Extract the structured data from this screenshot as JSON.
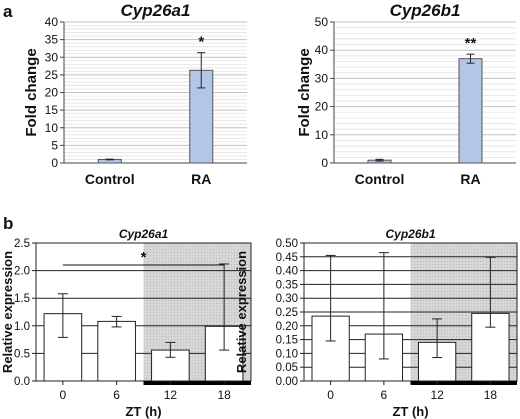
{
  "panel_labels": {
    "a": "a",
    "b": "b"
  },
  "significance": {
    "single": "*",
    "double": "**"
  },
  "colors": {
    "ra_bar": "#b4c6e7",
    "control_bar": "#b4c6e7",
    "open_bar": "#ffffff",
    "night_shade": "#d3d3d3"
  },
  "chart_data": [
    {
      "type": "bar",
      "title": "Cyp26a1",
      "ylabel": "Fold change",
      "xlabel": "",
      "categories": [
        "Control",
        "RA"
      ],
      "values": [
        1,
        26.3
      ],
      "errors": [
        0.1,
        5
      ],
      "ylim": [
        0,
        40
      ],
      "ytick_labels": [
        "0",
        "5",
        "10",
        "15",
        "20",
        "25",
        "30",
        "35",
        "40"
      ],
      "annotations": [
        {
          "category": "RA",
          "text": "*"
        }
      ],
      "grid": true
    },
    {
      "type": "bar",
      "title": "Cyp26b1",
      "ylabel": "Fold change",
      "xlabel": "",
      "categories": [
        "Control",
        "RA"
      ],
      "values": [
        1,
        37
      ],
      "errors": [
        0.3,
        1.6
      ],
      "ylim": [
        0,
        50
      ],
      "ytick_labels": [
        "0",
        "10",
        "20",
        "30",
        "40",
        "50"
      ],
      "annotations": [
        {
          "category": "RA",
          "text": "**"
        }
      ],
      "grid": true
    },
    {
      "type": "bar",
      "title": "Cyp26a1",
      "ylabel": "Relative expression",
      "xlabel": "ZT (h)",
      "categories": [
        "0",
        "6",
        "12",
        "18"
      ],
      "values": [
        1.22,
        1.08,
        0.56,
        0.99
      ],
      "error_low": [
        0.79,
        0.98,
        0.43,
        0.56
      ],
      "error_high": [
        1.58,
        1.17,
        0.7,
        2.12
      ],
      "ylim": [
        0,
        2.5
      ],
      "ytick_labels": [
        "0.0",
        "0.5",
        "1.0",
        "1.5",
        "2.0",
        "2.5"
      ],
      "annotations": [
        {
          "from": "0",
          "to": "18",
          "text": "*"
        }
      ],
      "grid": true
    },
    {
      "type": "bar",
      "title": "Cyp26b1",
      "ylabel": "Relative expression",
      "xlabel": "ZT (h)",
      "categories": [
        "0",
        "6",
        "12",
        "18"
      ],
      "values": [
        0.235,
        0.17,
        0.14,
        0.245
      ],
      "error_low": [
        0.145,
        0.08,
        0.085,
        0.195
      ],
      "error_high": [
        0.455,
        0.465,
        0.225,
        0.448
      ],
      "ylim": [
        0,
        0.5
      ],
      "ytick_labels": [
        "0.00",
        "0.05",
        "0.10",
        "0.15",
        "0.20",
        "0.25",
        "0.30",
        "0.35",
        "0.40",
        "0.45",
        "0.50"
      ],
      "grid": true
    }
  ]
}
